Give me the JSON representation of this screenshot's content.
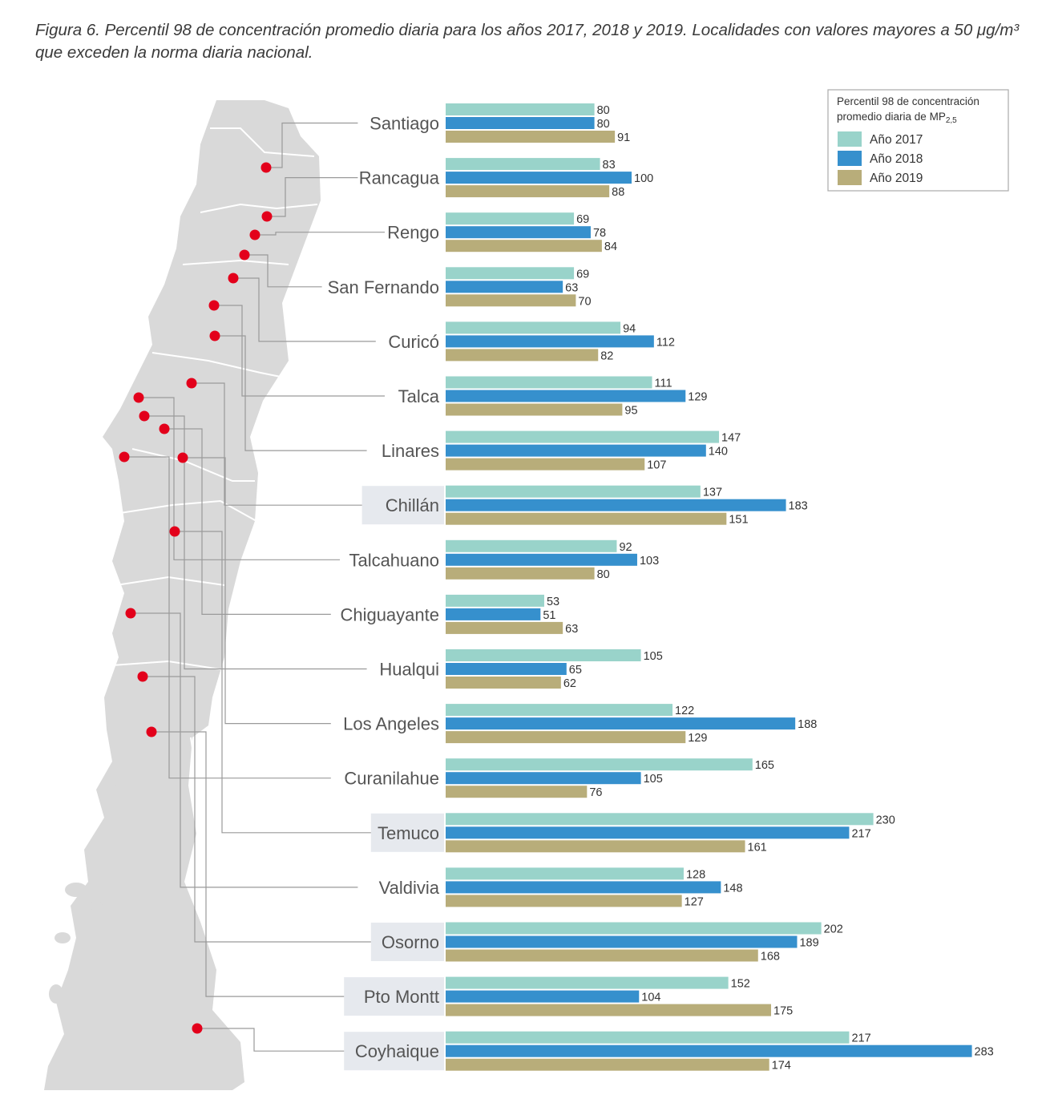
{
  "caption": {
    "figure_label": "Figura 6.",
    "text": "Percentil 98 de concentración promedio diaria para los años 2017, 2018 y 2019. Localidades con valores mayores a 50 μg/m³ que exceden la norma diaria nacional."
  },
  "legend": {
    "title_line1": "Percentil 98 de concentración",
    "title_line2": "promedio diaria de MP",
    "title_sub": "2,5"
  },
  "colors": {
    "y2017": "#99d3ca",
    "y2018": "#3690cd",
    "y2019": "#b8ad7a",
    "map_fill": "#d9d9d9",
    "marker": "#e3001b",
    "highlight": "#e6e9ee"
  },
  "chart_data": {
    "type": "bar",
    "orientation": "horizontal",
    "title": "",
    "categories": [
      "Santiago",
      "Rancagua",
      "Rengo",
      "San Fernando",
      "Curicó",
      "Talca",
      "Linares",
      "Chillán",
      "Talcahuano",
      "Chiguayante",
      "Hualqui",
      "Los Angeles",
      "Curanilahue",
      "Temuco",
      "Valdivia",
      "Osorno",
      "Pto Montt",
      "Coyhaique"
    ],
    "highlighted": [
      "Chillán",
      "Temuco",
      "Osorno",
      "Pto Montt",
      "Coyhaique"
    ],
    "series": [
      {
        "name": "Año 2017",
        "values": [
          80,
          83,
          69,
          69,
          94,
          111,
          147,
          137,
          92,
          53,
          105,
          122,
          165,
          230,
          128,
          202,
          152,
          217
        ]
      },
      {
        "name": "Año 2018",
        "values": [
          80,
          100,
          78,
          63,
          112,
          129,
          140,
          183,
          103,
          51,
          65,
          188,
          105,
          217,
          148,
          189,
          104,
          283
        ]
      },
      {
        "name": "Año 2019",
        "values": [
          91,
          88,
          84,
          70,
          82,
          95,
          107,
          151,
          80,
          63,
          62,
          129,
          76,
          161,
          127,
          168,
          175,
          174
        ]
      }
    ],
    "xlim": [
      0,
      283
    ],
    "grid": false,
    "legend_position": "top-right"
  }
}
